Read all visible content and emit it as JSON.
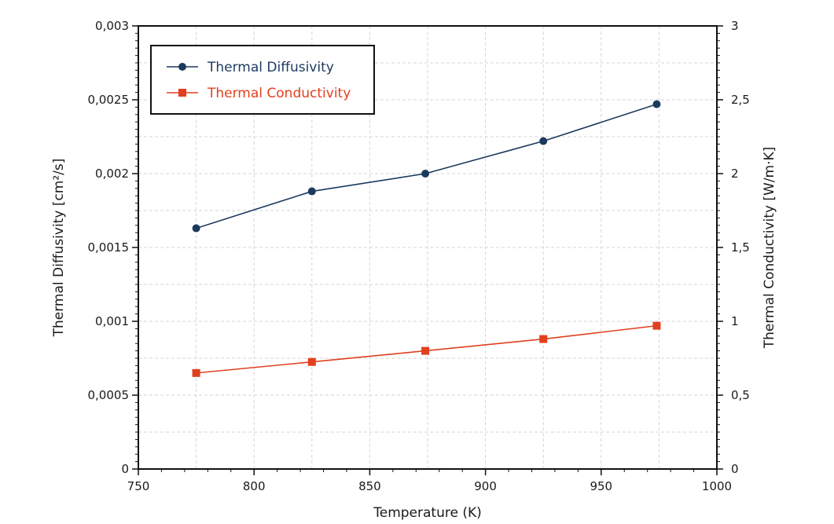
{
  "chart_data": {
    "type": "line",
    "xlabel": "Temperature (K)",
    "ylabel": "Thermal Diffusivity [cm²/s]",
    "y2label": "Thermal Conductivity  [W/m·K]",
    "xlim": [
      750,
      1000
    ],
    "ylim": [
      0,
      0.003
    ],
    "y2lim": [
      0,
      3
    ],
    "grid": true,
    "legend_position": "top-left",
    "x_ticks": [
      {
        "value": 750,
        "label": "750"
      },
      {
        "value": 800,
        "label": "800"
      },
      {
        "value": 850,
        "label": "850"
      },
      {
        "value": 900,
        "label": "900"
      },
      {
        "value": 950,
        "label": "950"
      },
      {
        "value": 1000,
        "label": "1000"
      }
    ],
    "y_ticks": [
      {
        "value": 0,
        "label": "0"
      },
      {
        "value": 0.0005,
        "label": "0,0005"
      },
      {
        "value": 0.001,
        "label": "0,001"
      },
      {
        "value": 0.0015,
        "label": "0,0015"
      },
      {
        "value": 0.002,
        "label": "0,002"
      },
      {
        "value": 0.0025,
        "label": "0,0025"
      },
      {
        "value": 0.003,
        "label": "0,003"
      }
    ],
    "y2_ticks": [
      {
        "value": 0,
        "label": "0"
      },
      {
        "value": 0.5,
        "label": "0,5"
      },
      {
        "value": 1,
        "label": "1"
      },
      {
        "value": 1.5,
        "label": "1,5"
      },
      {
        "value": 2,
        "label": "2"
      },
      {
        "value": 2.5,
        "label": "2,5"
      },
      {
        "value": 3,
        "label": "3"
      }
    ],
    "series": [
      {
        "name": "Thermal Diffusivity",
        "axis": "left",
        "marker": "circle",
        "color": "#1c3a5e",
        "x": [
          775,
          825,
          874,
          925,
          974
        ],
        "values": [
          0.00163,
          0.00188,
          0.002,
          0.00222,
          0.00247
        ]
      },
      {
        "name": "Thermal Conductivity",
        "axis": "right",
        "marker": "square",
        "color": "#e0401f",
        "x": [
          775,
          825,
          874,
          925,
          974
        ],
        "values": [
          0.65,
          0.725,
          0.8,
          0.88,
          0.97
        ]
      }
    ]
  }
}
